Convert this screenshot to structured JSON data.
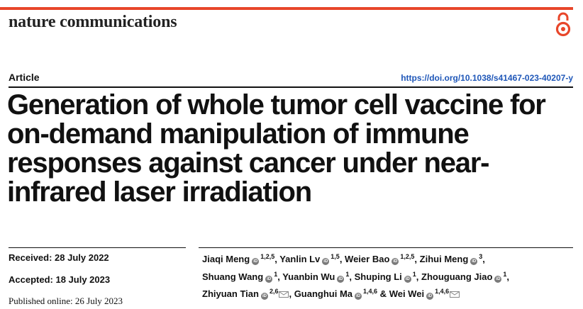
{
  "colors": {
    "accent": "#e8462a",
    "doi_link": "#1f57b8",
    "orcid": "#7a7a7a"
  },
  "header": {
    "journal": "nature communications",
    "open_access_icon": "open-access-icon"
  },
  "article": {
    "type": "Article",
    "doi": "https://doi.org/10.1038/s41467-023-40207-y",
    "title": "Generation of whole tumor cell vaccine for on-demand manipulation of immune responses against cancer under near-infrared laser irradiation"
  },
  "dates": {
    "received": "Received: 28 July 2022",
    "accepted": "Accepted: 18 July 2023",
    "published": "Published online: 26 July 2023"
  },
  "authors": [
    {
      "name": "Jiaqi Meng",
      "sup": "1,2,5",
      "sep": ", "
    },
    {
      "name": "Yanlin Lv",
      "sup": "1,5",
      "sep": ", "
    },
    {
      "name": "Weier Bao",
      "sup": "1,2,5",
      "sep": ", "
    },
    {
      "name": "Zihui Meng",
      "sup": "3",
      "sep": ","
    },
    {
      "name": "Shuang Wang",
      "sup": "1",
      "sep": ", "
    },
    {
      "name": "Yuanbin Wu",
      "sup": "1",
      "sep": ", "
    },
    {
      "name": "Shuping Li",
      "sup": "1",
      "sep": ", "
    },
    {
      "name": "Zhouguang Jiao",
      "sup": "1",
      "sep": ","
    },
    {
      "name": "Zhiyuan Tian",
      "sup": "2,6",
      "sep": ", "
    },
    {
      "name": "Guanghui Ma",
      "sup": "1,4,6",
      "sep": " & "
    },
    {
      "name": "Wei Wei",
      "sup": "1,4,6",
      "sep": ""
    }
  ]
}
